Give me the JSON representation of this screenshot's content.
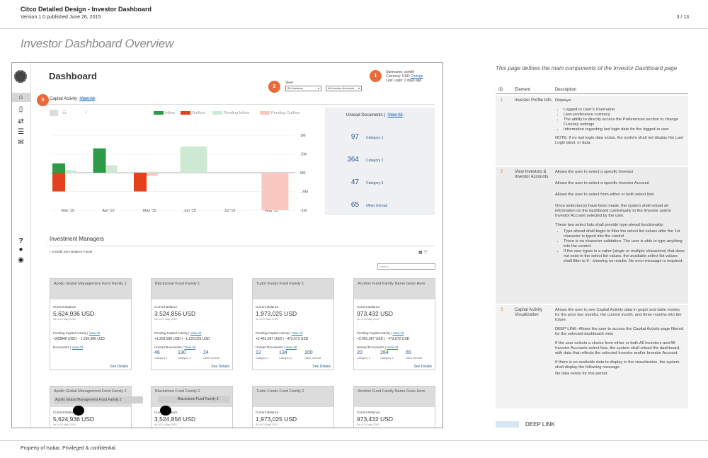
{
  "doc": {
    "title": "Citco Detailed Design - Investor Dashboard",
    "version": "Version 1.0 published June 26, 2015",
    "page": "3 / 13",
    "section_title": "Investor Dashboard Overview",
    "footer": "Property of Isobar. Privileged & confidential."
  },
  "dashboard": {
    "title": "Dashboard",
    "view_label": "View:",
    "investor_select": "All Investors",
    "account_select": "All Investor Accounts",
    "user_name": "Username: ssmith",
    "currency_label": "Currency: USD",
    "change_link": "Change",
    "last_login": "Last Login: 2 days ago",
    "badges": {
      "one": "1",
      "two": "2",
      "three": "3"
    }
  },
  "capital_activity": {
    "label": "Capital Activity",
    "view_all": "View All",
    "legend": [
      "Inflow",
      "Outflow",
      "Pending Inflow",
      "Pending Outflow"
    ],
    "colors": {
      "inflow": "#2e9a48",
      "outflow": "#e5401e",
      "pending_inflow": "#cde9d4",
      "pending_outflow": "#f9c9c1"
    }
  },
  "chart_data": {
    "type": "bar",
    "categories": [
      "Mar '15",
      "Apr '15",
      "May '15",
      "Jun '15",
      "Jul '15",
      "Aug '15"
    ],
    "series": [
      {
        "name": "Inflow",
        "values": [
          0.25,
          0.65,
          0,
          0,
          0,
          0
        ]
      },
      {
        "name": "Outflow",
        "values": [
          -0.5,
          0,
          -0.5,
          0,
          0,
          0
        ]
      },
      {
        "name": "Pending Inflow",
        "values": [
          0.07,
          0.2,
          0.03,
          0.7,
          0,
          0
        ]
      },
      {
        "name": "Pending Outflow",
        "values": [
          0,
          0,
          -0.08,
          0,
          0,
          -1.0
        ]
      }
    ],
    "yticks": [
      "1M",
      ".5M",
      "0M",
      "-.5M",
      "-1M"
    ],
    "ylim": [
      -1,
      1
    ],
    "grid": true
  },
  "unread": {
    "title": "Unread Documents",
    "view_all": "View All",
    "items": [
      {
        "count": "97",
        "label": "Category 1"
      },
      {
        "count": "364",
        "label": "Category 2"
      },
      {
        "count": "47",
        "label": "Category 3"
      },
      {
        "count": "65",
        "label": "Other Unread"
      }
    ]
  },
  "managers": {
    "title": "Investment Managers",
    "zero_balance": "Include Zero Balance Funds",
    "search_placeholder": "Search",
    "cards": [
      {
        "name": "Apollo Global Management Fund Family 1",
        "balance": "5,624,936 USD",
        "asof": "As of 21 May 2015",
        "pending_label": "Pending Capital Activity",
        "view_all": "View All",
        "pend_in": "+263846 USD",
        "pend_out": "- 1,236,986 USD",
        "docs_label": "Documents",
        "c1": "",
        "c2": "",
        "c3": "",
        "see": "See Details"
      },
      {
        "name": "Blackstone Fund Family 1",
        "balance": "3,524,856 USD",
        "asof": "As of 21 May 2015",
        "pending_label": "Pending Capital Activity",
        "view_all": "View All",
        "pend_in": "+1,203,930 USD",
        "pend_out": "- 1,120,031 USD",
        "docs_label": "Unread Documents",
        "c1": "46",
        "c2": "130",
        "c3": "24",
        "see": "See Details"
      },
      {
        "name": "Tudor Funds Fund Family 1",
        "balance": "1,973,025 USD",
        "asof": "As of 21 May 2015",
        "pending_label": "Pending Capital Activity",
        "view_all": "View All",
        "pend_in": "+2,461,567 USD",
        "pend_out": "- 473,672 USD",
        "docs_label": "Unread Documents",
        "c1": "12",
        "c2": "134",
        "c3": "100",
        "see": "See Details"
      },
      {
        "name": "Another Fund Family Name Goes Here",
        "balance": "973,432 USD",
        "asof": "As of 21 May 2015",
        "pending_label": "Pending Capital Activity",
        "view_all": "View All",
        "pend_in": "+2,461,567 USD",
        "pend_out": "- 473,672 USD",
        "docs_label": "Unread Documents",
        "c1": "20",
        "c2": "284",
        "c3": "65",
        "see": "See Details"
      }
    ],
    "count_labels": [
      "Category 1",
      "Category 2",
      "Other Unread"
    ],
    "cards_row2": [
      {
        "name": "Apollo Global Management Fund Family 2",
        "balance": "5,624,936 USD",
        "asof": "As of 21 May 2015"
      },
      {
        "name": "Blackstone Fund Family 2",
        "balance": "3,524,856 USD",
        "asof": "As of 21 May 2015"
      },
      {
        "name": "Tudor Funds Fund Family 2",
        "balance": "1,973,025 USD",
        "asof": "As of 21 May 2015"
      },
      {
        "name": "Another Fund Family Name Goes Here",
        "balance": "973,432 USD",
        "asof": "As of 21 May 2015"
      }
    ],
    "current_balance_label": "Current Balance",
    "drag_ghost_1": "Apollo Global Management Fund Family 2",
    "drag_ghost_2": "Blackstone Fund Family 3"
  },
  "spec": {
    "intro": "This page defines the main components of the Investor Dashboard page",
    "headers": {
      "id": "ID",
      "element": "Element",
      "description": "Description"
    },
    "rows": [
      {
        "id": "1",
        "element": "Investor Profile Info",
        "lead": "Displays:",
        "bullets": [
          "Logged-in User’s Username",
          "User-preference currency",
          "The ability to directly access the Preferences section to change Curency settings",
          "Information regarding last login date for the logged-in user"
        ],
        "note": "NOTE: If no last login data exists, the system shall not display the Last Login label, or data."
      },
      {
        "id": "2",
        "element": "View Investors & Investor Accounts",
        "p1": "Allows the user to select a specific Investor",
        "p2": "Allows the user to select a specific Investor Account",
        "p3": "Allows the user to select from either or both select lists",
        "p4": "Once selection(s) have been made, the system shall reload all information on the dashboard contextually to the Investor and/or Investor Account selected by the user.",
        "p5": "These two select lists shall provide type-ahead functionality:",
        "bullets": [
          "Type ahead shall begin to filter the select list values after the 1st character is typed into the control",
          "There is no character validation. The user is able to type anything into the control.",
          "If the user types in a value (single or multiple characters) that does not exist in the select list values, the available select list values shall filter to 0 - showing no results. No error message is required."
        ]
      },
      {
        "id": "3",
        "element": "Capital Activity Visualization",
        "p1": "Allows the user to see Capital Activity data in graph and table modes for the prior two months, the current month, and three months into the future.",
        "p2": "DEEP LINK- Allows the user to access the Capital Activity page filtered for the selected dashboard view",
        "p3": "If the user selects a choice from either or both All Investors and All Investor Accounts select lists, the system shall reload the dashboard, with data that reflects the selected Investor and/or Investor Account.",
        "p4": "If there is no available data to display in the visualization, the system shall display the following message:",
        "p5": "No data exists for this period."
      }
    ],
    "deep_link_label": "DEEP LINK"
  }
}
